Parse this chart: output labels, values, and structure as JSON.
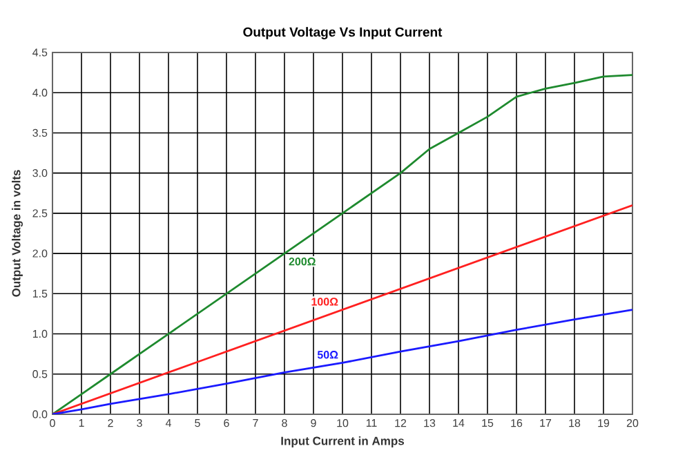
{
  "chart_data": {
    "type": "line",
    "title": "Output Voltage Vs Input Current",
    "xlabel": "Input Current in Amps",
    "ylabel": "Output Voltage in volts",
    "xlim": [
      0,
      20
    ],
    "ylim": [
      0,
      4.5
    ],
    "xticks": [
      0,
      1,
      2,
      3,
      4,
      5,
      6,
      7,
      8,
      9,
      10,
      11,
      12,
      13,
      14,
      15,
      16,
      17,
      18,
      19,
      20
    ],
    "yticks": [
      {
        "value": 0,
        "label": "0.0"
      },
      {
        "value": 0.5,
        "label": "0.5"
      },
      {
        "value": 1,
        "label": "1.0"
      },
      {
        "value": 1.5,
        "label": "1.5"
      },
      {
        "value": 2,
        "label": "2.0"
      },
      {
        "value": 2.5,
        "label": "2.5"
      },
      {
        "value": 3,
        "label": "3.0"
      },
      {
        "value": 3.5,
        "label": "3.5"
      },
      {
        "value": 4,
        "label": "4.0"
      },
      {
        "value": 4.5,
        "label": "4.5"
      }
    ],
    "grid": true,
    "legend": false,
    "marker": "none",
    "line_style": "solid",
    "series": [
      {
        "name": "200Ω",
        "color": "#1e8a2e",
        "x": [
          0,
          1,
          2,
          4,
          6,
          8,
          10,
          12,
          13,
          14,
          15,
          16,
          17,
          18,
          19,
          20
        ],
        "values": [
          0,
          0.25,
          0.5,
          1.0,
          1.5,
          2.0,
          2.5,
          3.0,
          3.3,
          3.5,
          3.7,
          3.95,
          4.05,
          4.12,
          4.2,
          4.22
        ]
      },
      {
        "name": "100Ω",
        "color": "#ff2020",
        "x": [
          0,
          5,
          10,
          15,
          20
        ],
        "values": [
          0,
          0.65,
          1.3,
          1.95,
          2.6
        ]
      },
      {
        "name": "50Ω",
        "color": "#1a1aff",
        "x": [
          0,
          1,
          2,
          4,
          6,
          8,
          10,
          12,
          14,
          16,
          18,
          20
        ],
        "values": [
          0,
          0.06,
          0.13,
          0.25,
          0.38,
          0.52,
          0.64,
          0.78,
          0.91,
          1.05,
          1.18,
          1.3
        ]
      }
    ]
  }
}
